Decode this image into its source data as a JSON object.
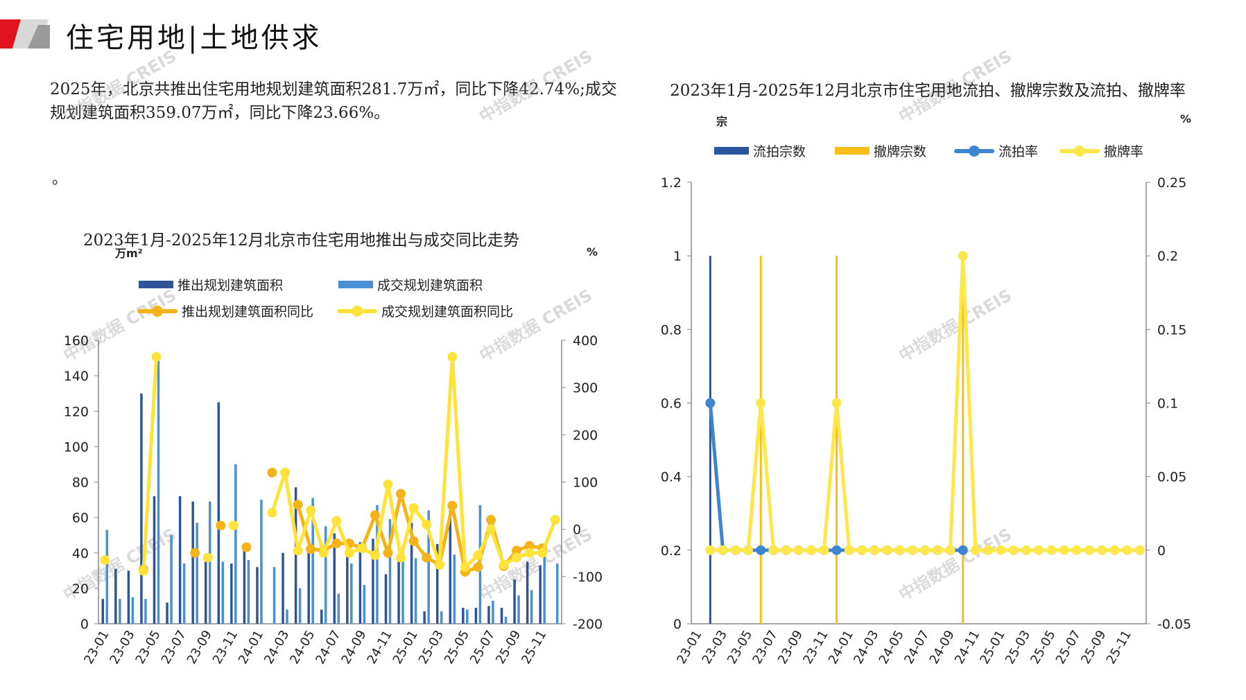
{
  "header": {
    "title": "住宅用地|土地供求"
  },
  "summary": {
    "text": "2025年，北京共推出住宅用地规划建筑面积281.7万㎡，同比下降42.74%;成交规划建筑面积359.07万㎡，同比下降23.66%。",
    "note": "。"
  },
  "watermark": "中指数据 CREIS",
  "chart_data": [
    {
      "type": "bar+line",
      "title": "2023年1月-2025年12月北京市住宅用地推出与成交同比走势",
      "ylabel": "万m²",
      "y2label": "%",
      "ylim": [
        0,
        160
      ],
      "yticks": [
        0,
        20,
        40,
        60,
        80,
        100,
        120,
        140,
        160
      ],
      "y2lim": [
        -200,
        400
      ],
      "y2ticks": [
        -200,
        -100,
        0,
        100,
        200,
        300,
        400
      ],
      "categories": [
        "23-01",
        "23-02",
        "23-03",
        "23-04",
        "23-05",
        "23-06",
        "23-07",
        "23-08",
        "23-09",
        "23-10",
        "23-11",
        "23-12",
        "24-01",
        "24-02",
        "24-03",
        "24-04",
        "24-05",
        "24-06",
        "24-07",
        "24-08",
        "24-09",
        "24-10",
        "24-11",
        "24-12",
        "25-01",
        "25-02",
        "25-03",
        "25-04",
        "25-05",
        "25-06",
        "25-07",
        "25-08",
        "25-09",
        "25-10",
        "25-11",
        "25-12"
      ],
      "xticks": [
        "23-01",
        "23-03",
        "23-05",
        "23-07",
        "23-09",
        "23-11",
        "24-01",
        "24-03",
        "24-05",
        "24-07",
        "24-09",
        "24-11",
        "25-01",
        "25-03",
        "25-05",
        "25-07",
        "25-09",
        "25-11"
      ],
      "series": [
        {
          "name": "推出规划建筑面积",
          "kind": "bar",
          "axis": "left",
          "color": "#2e5597",
          "values": [
            14,
            31,
            30,
            130,
            72,
            12,
            72,
            69,
            35,
            125,
            34,
            45,
            32,
            0,
            40,
            77,
            40,
            8,
            51,
            42,
            46,
            48,
            28,
            36,
            57,
            7,
            45,
            64,
            9,
            9,
            10,
            9,
            25,
            35,
            33,
            0
          ]
        },
        {
          "name": "成交规划建筑面积",
          "kind": "bar",
          "axis": "left",
          "color": "#4a8fd4",
          "values": [
            53,
            14,
            15,
            14,
            150,
            50,
            34,
            57,
            69,
            35,
            90,
            36,
            70,
            32,
            8,
            20,
            71,
            55,
            17,
            34,
            22,
            67,
            59,
            44,
            37,
            64,
            7,
            39,
            8,
            67,
            13,
            4,
            16,
            19,
            42,
            34
          ]
        },
        {
          "name": "推出规划建筑面积同比",
          "kind": "line",
          "axis": "right",
          "color": "#f5b31a",
          "values": [
            null,
            null,
            null,
            -85,
            null,
            null,
            null,
            -50,
            null,
            8,
            null,
            -38,
            null,
            120,
            null,
            52,
            -42,
            -45,
            -30,
            -30,
            -40,
            30,
            -50,
            75,
            -25,
            -60,
            -75,
            50,
            -90,
            -80,
            20,
            -78,
            -45,
            -35,
            -40,
            null
          ]
        },
        {
          "name": "成交规划建筑面积同比",
          "kind": "line",
          "axis": "right",
          "color": "#ffe33b",
          "values": [
            -65,
            null,
            null,
            -88,
            365,
            null,
            null,
            null,
            -60,
            null,
            8,
            null,
            null,
            35,
            120,
            -45,
            40,
            -50,
            18,
            -50,
            -40,
            -55,
            95,
            -60,
            45,
            10,
            -75,
            365,
            -80,
            -55,
            0,
            -75,
            -60,
            -50,
            -50,
            20
          ]
        }
      ]
    },
    {
      "type": "bar+line",
      "title": "2023年1月-2025年12月北京市住宅用地流拍、撤牌宗数及流拍、撤牌率",
      "ylabel": "宗",
      "y2label": "%",
      "ylim": [
        0,
        1.2
      ],
      "yticks": [
        "0",
        "0.2",
        "0.4",
        "0.6",
        "0.8",
        "1",
        "1.2"
      ],
      "y2lim": [
        -0.05,
        0.25
      ],
      "y2ticks": [
        "-0.05",
        "0",
        "0.05",
        "0.1",
        "0.15",
        "0.2",
        "0.25"
      ],
      "categories": [
        "23-01",
        "23-02",
        "23-03",
        "23-04",
        "23-05",
        "23-06",
        "23-07",
        "23-08",
        "23-09",
        "23-10",
        "23-11",
        "23-12",
        "24-01",
        "24-02",
        "24-03",
        "24-04",
        "24-05",
        "24-06",
        "24-07",
        "24-08",
        "24-09",
        "24-10",
        "24-11",
        "24-12",
        "25-01",
        "25-02",
        "25-03",
        "25-04",
        "25-05",
        "25-06",
        "25-07",
        "25-08",
        "25-09",
        "25-10",
        "25-11",
        "25-12"
      ],
      "xticks": [
        "23-01",
        "23-03",
        "23-05",
        "23-07",
        "23-09",
        "23-11",
        "24-01",
        "24-03",
        "24-05",
        "24-07",
        "24-09",
        "24-11",
        "25-01",
        "25-03",
        "25-05",
        "25-07",
        "25-09",
        "25-11"
      ],
      "series": [
        {
          "name": "流拍宗数",
          "kind": "bar",
          "axis": "left",
          "color": "#2b55a0",
          "values": [
            0,
            1,
            0,
            0,
            0,
            0,
            0,
            0,
            0,
            0,
            0,
            0,
            0,
            0,
            0,
            0,
            0,
            0,
            0,
            0,
            0,
            0,
            0,
            0,
            0,
            0,
            0,
            0,
            0,
            0,
            0,
            0,
            0,
            0,
            0,
            0
          ]
        },
        {
          "name": "撤牌宗数",
          "kind": "bar",
          "axis": "left",
          "color": "#f9be17",
          "values": [
            0,
            0,
            0,
            0,
            0,
            1,
            0,
            0,
            0,
            0,
            0,
            1,
            0,
            0,
            0,
            0,
            0,
            0,
            0,
            0,
            0,
            1,
            0,
            0,
            0,
            0,
            0,
            0,
            0,
            0,
            0,
            0,
            0,
            0,
            0,
            0
          ]
        },
        {
          "name": "流拍率",
          "kind": "line",
          "axis": "right",
          "color": "#3d85d0",
          "values": [
            null,
            0.1,
            0,
            0,
            0,
            0,
            0,
            0,
            0,
            0,
            0,
            0,
            0,
            0,
            0,
            0,
            0,
            0,
            0,
            0,
            0,
            0,
            null,
            null,
            null,
            null,
            null,
            null,
            null,
            null,
            null,
            null,
            null,
            null,
            null,
            null
          ]
        },
        {
          "name": "撤牌率",
          "kind": "line",
          "axis": "right",
          "color": "#fde74a",
          "values": [
            null,
            0,
            0,
            0,
            0,
            0.1,
            0,
            0,
            0,
            0,
            0,
            0.1,
            0,
            0,
            0,
            0,
            0,
            0,
            0,
            0,
            0,
            0.2,
            0,
            0,
            0,
            0,
            0,
            0,
            0,
            0,
            0,
            0,
            0,
            0,
            0,
            0
          ]
        }
      ]
    }
  ]
}
